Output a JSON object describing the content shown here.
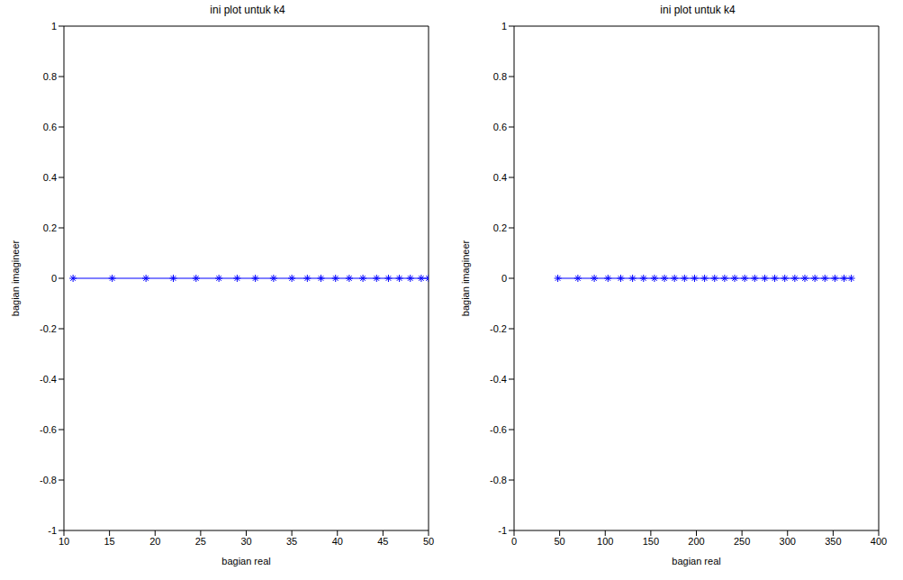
{
  "chart_data": [
    {
      "type": "line",
      "title": "ini plot untuk k4",
      "x_label": "bagian real",
      "y_label": "bagian imagineer",
      "x": [
        11,
        15.3,
        19,
        22,
        24.5,
        27,
        29,
        31,
        33,
        35,
        36.7,
        38.2,
        39.8,
        41.3,
        42.8,
        44.3,
        45.6,
        46.8,
        48,
        49.2,
        50
      ],
      "values": [
        0,
        0,
        0,
        0,
        0,
        0,
        0,
        0,
        0,
        0,
        0,
        0,
        0,
        0,
        0,
        0,
        0,
        0,
        0,
        0,
        0
      ],
      "xlim": [
        10,
        50
      ],
      "xticks": [
        10,
        15,
        20,
        25,
        30,
        35,
        40,
        45,
        50
      ],
      "ylim": [
        -1,
        1
      ],
      "yticks": [
        -1,
        -0.8,
        -0.6,
        -0.4,
        -0.2,
        0,
        0.2,
        0.4,
        0.6,
        0.8,
        1
      ],
      "color": "#0000ff",
      "marker": "star",
      "grid": false
    },
    {
      "type": "line",
      "title": "ini plot untuk k4",
      "x_label": "bagian real",
      "y_label": "bagian imagineer",
      "x": [
        48,
        70,
        88,
        103,
        117,
        130,
        142,
        154,
        165,
        176,
        187,
        198,
        209,
        220,
        231,
        242,
        253,
        264,
        275,
        286,
        297,
        308,
        319,
        330,
        341,
        352,
        362,
        370
      ],
      "values": [
        0,
        0,
        0,
        0,
        0,
        0,
        0,
        0,
        0,
        0,
        0,
        0,
        0,
        0,
        0,
        0,
        0,
        0,
        0,
        0,
        0,
        0,
        0,
        0,
        0,
        0,
        0,
        0
      ],
      "xlim": [
        0,
        400
      ],
      "xticks": [
        0,
        50,
        100,
        150,
        200,
        250,
        300,
        350,
        400
      ],
      "ylim": [
        -1,
        1
      ],
      "yticks": [
        -1,
        -0.8,
        -0.6,
        -0.4,
        -0.2,
        0,
        0.2,
        0.4,
        0.6,
        0.8,
        1
      ],
      "color": "#0000ff",
      "marker": "star",
      "grid": false
    }
  ]
}
